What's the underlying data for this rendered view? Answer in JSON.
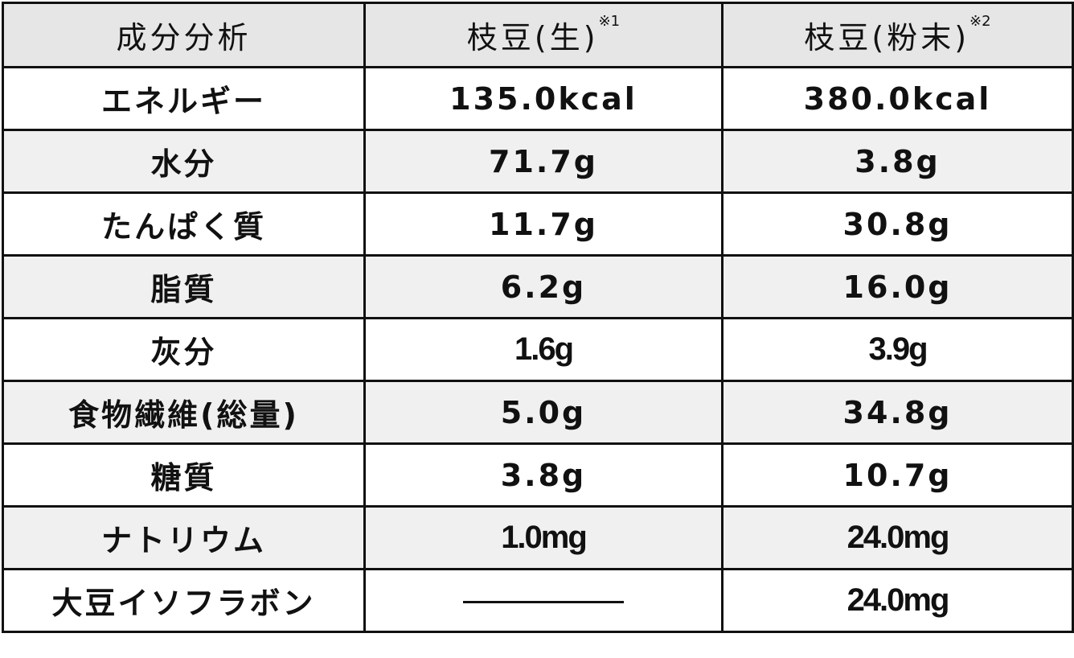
{
  "headers": [
    {
      "label": "成分分析",
      "note": ""
    },
    {
      "label": "枝豆(生)",
      "note": "※1"
    },
    {
      "label": "枝豆(粉末)",
      "note": "※2"
    }
  ],
  "rows": [
    {
      "name": "エネルギー",
      "raw": "135.0kcal",
      "powder": "380.0kcal"
    },
    {
      "name": "水分",
      "raw": "71.7g",
      "powder": "3.8g"
    },
    {
      "name": "たんぱく質",
      "raw": "11.7g",
      "powder": "30.8g"
    },
    {
      "name": "脂質",
      "raw": "6.2g",
      "powder": "16.0g"
    },
    {
      "name": "灰分",
      "raw": "1.6g",
      "powder": "3.9g"
    },
    {
      "name": "食物繊維(総量)",
      "raw": "5.0g",
      "powder": "34.8g"
    },
    {
      "name": "糖質",
      "raw": "3.8g",
      "powder": "10.7g"
    },
    {
      "name": "ナトリウム",
      "raw": "1.0mg",
      "powder": "24.0mg"
    },
    {
      "name": "大豆イソフラボン",
      "raw": null,
      "powder": "24.0mg"
    }
  ],
  "colors": {
    "header_bg": "#e6e6e6",
    "alt_row_bg": "#f0f0f0",
    "border": "#111111"
  }
}
